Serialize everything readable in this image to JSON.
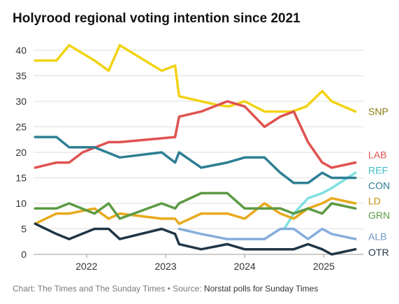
{
  "title": "Holyrood regional voting intention since 2021",
  "footer": {
    "credit": "Chart: The Times and The Sunday Times",
    "separator": " • ",
    "source_label": "Source: ",
    "source": "Norstat polls for Sunday Times"
  },
  "chart_data": {
    "type": "line",
    "title": "Holyrood regional voting intention since 2021",
    "xlabel": "",
    "ylabel": "",
    "xlim": [
      2021.33,
      2025.5
    ],
    "ylim": [
      0,
      40
    ],
    "x_ticks": [
      {
        "value": 2022,
        "label": "2022"
      },
      {
        "value": 2023,
        "label": "2023"
      },
      {
        "value": 2024,
        "label": "2024"
      },
      {
        "value": 2025,
        "label": "2025"
      }
    ],
    "y_ticks": [
      0,
      5,
      10,
      15,
      20,
      25,
      30,
      35,
      40
    ],
    "grid": "horizontal",
    "legend": "direct labels at right end of lines",
    "series": [
      {
        "name": "SNP",
        "color": "#f2d314",
        "points": [
          [
            2021.35,
            38
          ],
          [
            2021.62,
            38
          ],
          [
            2021.78,
            41
          ],
          [
            2022.1,
            38
          ],
          [
            2022.28,
            36
          ],
          [
            2022.42,
            41
          ],
          [
            2022.95,
            36
          ],
          [
            2023.12,
            37
          ],
          [
            2023.17,
            31
          ],
          [
            2023.45,
            30
          ],
          [
            2023.68,
            29.2
          ],
          [
            2023.8,
            29
          ],
          [
            2024.0,
            30
          ],
          [
            2024.25,
            28
          ],
          [
            2024.6,
            28
          ],
          [
            2024.78,
            29
          ],
          [
            2024.98,
            32
          ],
          [
            2025.1,
            30
          ],
          [
            2025.4,
            28
          ]
        ]
      },
      {
        "name": "LAB",
        "color": "#e05250",
        "points": [
          [
            2021.35,
            17
          ],
          [
            2021.62,
            18
          ],
          [
            2021.78,
            18
          ],
          [
            2021.95,
            20
          ],
          [
            2022.28,
            22
          ],
          [
            2022.42,
            22
          ],
          [
            2023.12,
            23
          ],
          [
            2023.17,
            27
          ],
          [
            2023.45,
            28
          ],
          [
            2023.78,
            30
          ],
          [
            2024.0,
            29
          ],
          [
            2024.25,
            25
          ],
          [
            2024.45,
            27
          ],
          [
            2024.62,
            28
          ],
          [
            2024.8,
            22
          ],
          [
            2024.98,
            18
          ],
          [
            2025.1,
            17
          ],
          [
            2025.4,
            18
          ]
        ]
      },
      {
        "name": "REF",
        "color": "#7ee0e0",
        "points": [
          [
            2024.5,
            5
          ],
          [
            2024.62,
            8
          ],
          [
            2024.8,
            11
          ],
          [
            2024.98,
            12
          ],
          [
            2025.1,
            13
          ],
          [
            2025.4,
            16
          ]
        ]
      },
      {
        "name": "CON",
        "color": "#2e7f93",
        "points": [
          [
            2021.35,
            23
          ],
          [
            2021.62,
            23
          ],
          [
            2021.78,
            21
          ],
          [
            2022.1,
            21
          ],
          [
            2022.42,
            19
          ],
          [
            2022.95,
            20
          ],
          [
            2023.12,
            18
          ],
          [
            2023.17,
            20
          ],
          [
            2023.45,
            17
          ],
          [
            2023.78,
            18
          ],
          [
            2024.0,
            19
          ],
          [
            2024.25,
            19
          ],
          [
            2024.45,
            16
          ],
          [
            2024.62,
            14
          ],
          [
            2024.8,
            14
          ],
          [
            2024.98,
            16
          ],
          [
            2025.1,
            15
          ],
          [
            2025.4,
            15
          ]
        ]
      },
      {
        "name": "LD",
        "color": "#e8a91c",
        "points": [
          [
            2021.35,
            6
          ],
          [
            2021.62,
            8
          ],
          [
            2021.78,
            8
          ],
          [
            2022.1,
            9
          ],
          [
            2022.28,
            7
          ],
          [
            2022.42,
            8
          ],
          [
            2022.95,
            7
          ],
          [
            2023.12,
            7
          ],
          [
            2023.17,
            6
          ],
          [
            2023.45,
            8
          ],
          [
            2023.78,
            8
          ],
          [
            2024.0,
            7
          ],
          [
            2024.25,
            10
          ],
          [
            2024.45,
            8
          ],
          [
            2024.62,
            7
          ],
          [
            2024.8,
            9
          ],
          [
            2024.98,
            10
          ],
          [
            2025.1,
            11
          ],
          [
            2025.4,
            10
          ]
        ]
      },
      {
        "name": "GRN",
        "color": "#5c9b43",
        "points": [
          [
            2021.35,
            9
          ],
          [
            2021.62,
            9
          ],
          [
            2021.78,
            10
          ],
          [
            2022.1,
            8
          ],
          [
            2022.28,
            10
          ],
          [
            2022.42,
            7
          ],
          [
            2022.95,
            10
          ],
          [
            2023.12,
            9
          ],
          [
            2023.17,
            10
          ],
          [
            2023.45,
            12
          ],
          [
            2023.78,
            12
          ],
          [
            2024.0,
            9
          ],
          [
            2024.25,
            9
          ],
          [
            2024.45,
            9
          ],
          [
            2024.62,
            8
          ],
          [
            2024.8,
            9
          ],
          [
            2024.98,
            8
          ],
          [
            2025.1,
            10
          ],
          [
            2025.4,
            9
          ]
        ]
      },
      {
        "name": "ALB",
        "color": "#86aedc",
        "points": [
          [
            2023.17,
            5
          ],
          [
            2023.45,
            4
          ],
          [
            2023.78,
            3
          ],
          [
            2024.0,
            3
          ],
          [
            2024.25,
            3
          ],
          [
            2024.45,
            5
          ],
          [
            2024.62,
            5
          ],
          [
            2024.8,
            3
          ],
          [
            2024.98,
            5
          ],
          [
            2025.1,
            4
          ],
          [
            2025.4,
            3
          ]
        ]
      },
      {
        "name": "OTR",
        "color": "#1f3647",
        "points": [
          [
            2021.35,
            6
          ],
          [
            2021.62,
            4
          ],
          [
            2021.78,
            3
          ],
          [
            2022.1,
            5
          ],
          [
            2022.28,
            5
          ],
          [
            2022.42,
            3
          ],
          [
            2022.95,
            5
          ],
          [
            2023.12,
            4
          ],
          [
            2023.17,
            2
          ],
          [
            2023.45,
            1
          ],
          [
            2023.78,
            2
          ],
          [
            2024.0,
            1
          ],
          [
            2024.25,
            1
          ],
          [
            2024.45,
            1
          ],
          [
            2024.62,
            1
          ],
          [
            2024.8,
            2
          ],
          [
            2024.98,
            1
          ],
          [
            2025.1,
            0
          ],
          [
            2025.4,
            1
          ]
        ]
      }
    ],
    "end_labels": [
      {
        "series": "SNP",
        "text": "SNP",
        "label_value": 28
      },
      {
        "series": "LAB",
        "text": "LAB",
        "label_value": 19.5
      },
      {
        "series": "REF",
        "text": "REF",
        "label_value": 16.5
      },
      {
        "series": "CON",
        "text": "CON",
        "label_value": 13.5
      },
      {
        "series": "LD",
        "text": "LD",
        "label_value": 10.5
      },
      {
        "series": "GRN",
        "text": "GRN",
        "label_value": 7.7
      },
      {
        "series": "ALB",
        "text": "ALB",
        "label_value": 3.5
      },
      {
        "series": "OTR",
        "text": "OTR",
        "label_value": 0.4
      }
    ],
    "label_colors": {
      "SNP": "#8a7a10",
      "LAB": "#e05250",
      "REF": "#3fbfc4",
      "CON": "#2e7f93",
      "LD": "#c8900c",
      "GRN": "#5c9b43",
      "ALB": "#6f98c8",
      "OTR": "#1f3647"
    }
  }
}
